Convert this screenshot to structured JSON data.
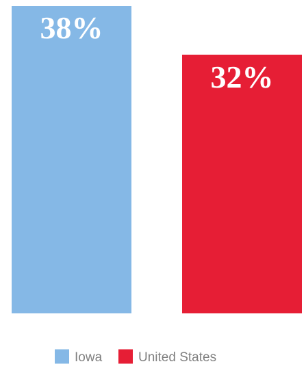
{
  "chart_data": {
    "type": "bar",
    "categories": [
      "Iowa",
      "United States"
    ],
    "values": [
      38,
      32
    ],
    "value_labels": [
      "38%",
      "32%"
    ],
    "ylim": [
      0,
      38
    ],
    "grid": false,
    "legend_placement": "bottom-center",
    "title": "",
    "xlabel": "",
    "ylabel": "",
    "colors": {
      "Iowa": "#85B8E6",
      "United States": "#E61E35"
    }
  },
  "legend": {
    "items": [
      {
        "label": "Iowa",
        "color": "#85B8E6"
      },
      {
        "label": "United States",
        "color": "#E61E35"
      }
    ]
  }
}
